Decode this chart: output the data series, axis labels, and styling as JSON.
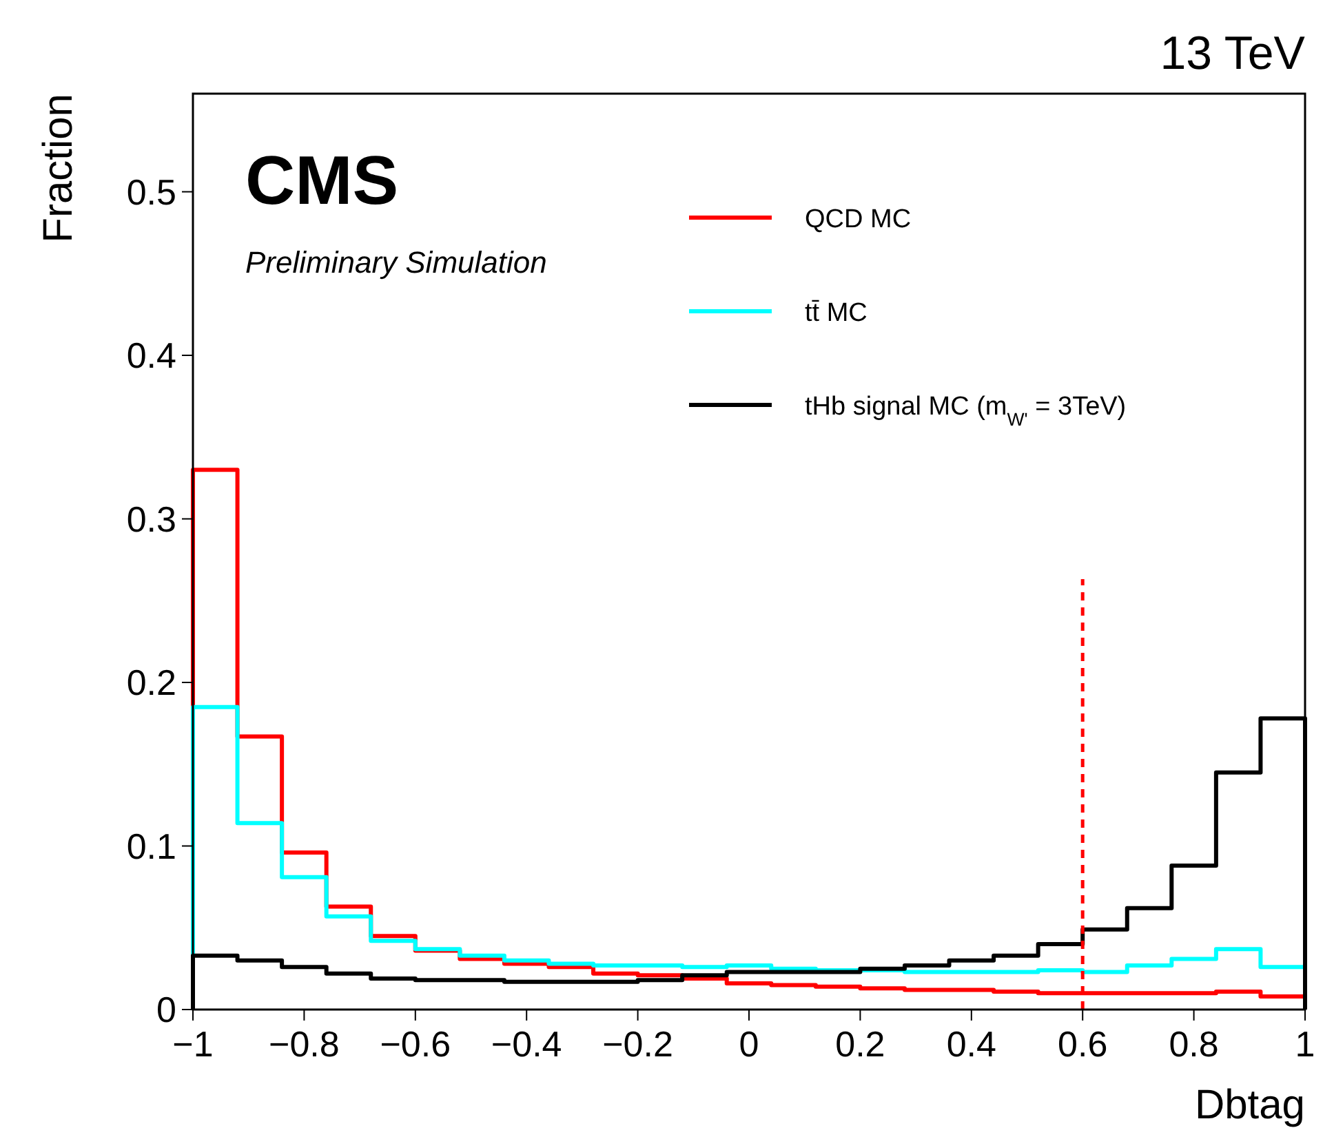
{
  "chart_data": {
    "type": "histogram",
    "xlabel": "Dbtag",
    "ylabel": "Fraction",
    "bins": [
      -1,
      -0.92,
      -0.84,
      -0.76,
      -0.68,
      -0.6,
      -0.52,
      -0.44,
      -0.36,
      -0.28,
      -0.2,
      -0.12,
      -0.04,
      0.04,
      0.12,
      0.2,
      0.28,
      0.36,
      0.44,
      0.52,
      0.6,
      0.68,
      0.76,
      0.84,
      0.92,
      1
    ],
    "series": [
      {
        "name": "QCD MC",
        "color": "#ff0000",
        "values": [
          0.33,
          0.167,
          0.096,
          0.063,
          0.045,
          0.036,
          0.031,
          0.028,
          0.026,
          0.022,
          0.021,
          0.019,
          0.016,
          0.015,
          0.014,
          0.013,
          0.012,
          0.012,
          0.011,
          0.01,
          0.01,
          0.01,
          0.01,
          0.011,
          0.008
        ]
      },
      {
        "name": "tt̄ MC",
        "color": "#00ffff",
        "values": [
          0.185,
          0.114,
          0.081,
          0.057,
          0.042,
          0.037,
          0.033,
          0.03,
          0.028,
          0.027,
          0.027,
          0.026,
          0.027,
          0.025,
          0.024,
          0.024,
          0.023,
          0.023,
          0.023,
          0.024,
          0.023,
          0.027,
          0.031,
          0.037,
          0.026
        ]
      },
      {
        "name": "tHb signal MC (m$_{W'}$ = 3TeV)",
        "color": "#000000",
        "values": [
          0.033,
          0.03,
          0.026,
          0.022,
          0.019,
          0.018,
          0.018,
          0.017,
          0.017,
          0.017,
          0.018,
          0.021,
          0.023,
          0.023,
          0.023,
          0.025,
          0.027,
          0.03,
          0.033,
          0.04,
          0.049,
          0.062,
          0.088,
          0.145,
          0.178
        ]
      }
    ],
    "xlim": [
      -1,
      1
    ],
    "ylim": [
      0,
      0.56
    ],
    "xticks": [
      {
        "value": -1,
        "label": "−1"
      },
      {
        "value": -0.8,
        "label": "−0.8"
      },
      {
        "value": -0.6,
        "label": "−0.6"
      },
      {
        "value": -0.4,
        "label": "−0.4"
      },
      {
        "value": -0.2,
        "label": "−0.2"
      },
      0,
      0.2,
      0.4,
      0.6,
      0.8,
      1
    ],
    "yticks": [
      0,
      0.1,
      0.2,
      0.3,
      0.4,
      0.5
    ],
    "ref_lines": [
      {
        "axis": "x",
        "value": 0.6,
        "color": "#ff0000",
        "line_style": "dashed"
      }
    ],
    "legend": "top right",
    "annotations": [
      "CMS",
      "Preliminary Simulation",
      "13 TeV"
    ]
  }
}
